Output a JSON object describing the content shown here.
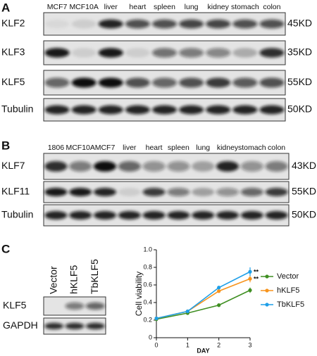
{
  "panels": [
    {
      "label": "A",
      "lanes": [
        "MCF7",
        "MCF10A",
        "liver",
        "heart",
        "spleen",
        "lung",
        "kidney",
        "stomach",
        "colon"
      ],
      "rows": [
        {
          "name": "KLF2",
          "size": "45KD"
        },
        {
          "name": "KLF3",
          "size": "35KD"
        },
        {
          "name": "KLF5",
          "size": "55KD"
        },
        {
          "name": "Tubulin",
          "size": "50KD"
        }
      ]
    },
    {
      "label": "B",
      "lanes": [
        "1806",
        "MCF10A",
        "MCF7",
        "liver",
        "heart",
        "spleen",
        "lung",
        "kidney",
        "stomach",
        "colon"
      ],
      "rows": [
        {
          "name": "KLF7",
          "size": "43KD"
        },
        {
          "name": "KLF11",
          "size": "55KD"
        },
        {
          "name": "Tubulin",
          "size": "50KD"
        }
      ]
    },
    {
      "label": "C",
      "lanes": [
        "Vector",
        "hKLF5",
        "TbKLF5"
      ],
      "rows": [
        {
          "name": "KLF5"
        },
        {
          "name": "GAPDH"
        }
      ]
    }
  ],
  "chart_data": {
    "type": "line",
    "x_label": "DAY",
    "y_label": "Cell viability",
    "x": [
      0,
      1,
      2,
      3
    ],
    "series": [
      {
        "name": "Vector",
        "color": "#3f8f22",
        "values": [
          0.21,
          0.28,
          0.37,
          0.54
        ],
        "errors": [
          0.01,
          0.01,
          0.02,
          0.03
        ]
      },
      {
        "name": "hKLF5",
        "color": "#f7941d",
        "values": [
          0.22,
          0.3,
          0.53,
          0.67
        ],
        "errors": [
          0.01,
          0.01,
          0.02,
          0.04
        ]
      },
      {
        "name": "TbKLF5",
        "color": "#1e9fe8",
        "values": [
          0.22,
          0.3,
          0.57,
          0.75
        ],
        "errors": [
          0.01,
          0.01,
          0.02,
          0.05
        ]
      }
    ],
    "annotations": [
      {
        "text": "**",
        "y": 0.75
      },
      {
        "text": "**",
        "y": 0.67
      }
    ],
    "xlim": [
      0,
      3
    ],
    "xticks": [
      0,
      1,
      2,
      3
    ],
    "ylim": [
      0,
      1
    ],
    "yticks": [
      0,
      0.2,
      0.4,
      0.6,
      0.8,
      {
        "value": 1,
        "label": "1.0"
      }
    ]
  }
}
